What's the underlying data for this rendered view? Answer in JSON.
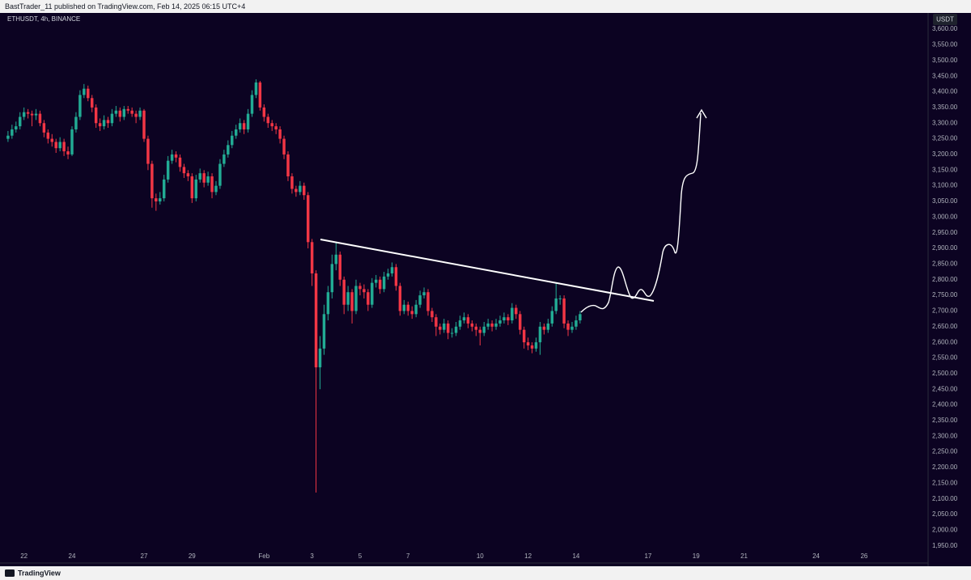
{
  "header": {
    "text": "BastTrader_11 published on TradingView.com, Feb 14, 2025 06:15 UTC+4"
  },
  "footer": {
    "brand": "TradingView"
  },
  "chart_data": {
    "type": "candlestick",
    "title": "ETHUSDT, 4h, BINANCE",
    "y_unit": "USDT",
    "up_color": "#22ab94",
    "down_color": "#f23645",
    "grid": false,
    "xlim": [
      -2,
      230
    ],
    "xticks": [
      {
        "value": 4,
        "label": "22"
      },
      {
        "value": 16,
        "label": "24"
      },
      {
        "value": 34,
        "label": "27"
      },
      {
        "value": 46,
        "label": "29"
      },
      {
        "value": 64,
        "label": "Feb"
      },
      {
        "value": 76,
        "label": "3"
      },
      {
        "value": 88,
        "label": "5"
      },
      {
        "value": 100,
        "label": "7"
      },
      {
        "value": 118,
        "label": "10"
      },
      {
        "value": 130,
        "label": "12"
      },
      {
        "value": 142,
        "label": "14"
      },
      {
        "value": 160,
        "label": "17"
      },
      {
        "value": 172,
        "label": "19"
      },
      {
        "value": 184,
        "label": "21"
      },
      {
        "value": 202,
        "label": "24"
      },
      {
        "value": 214,
        "label": "26"
      }
    ],
    "ylim": [
      1895,
      3652
    ],
    "yticks": [
      {
        "value": 1950,
        "label": "1,950.00"
      },
      {
        "value": 2000,
        "label": "2,000.00"
      },
      {
        "value": 2050,
        "label": "2,050.00"
      },
      {
        "value": 2100,
        "label": "2,100.00"
      },
      {
        "value": 2150,
        "label": "2,150.00"
      },
      {
        "value": 2200,
        "label": "2,200.00"
      },
      {
        "value": 2250,
        "label": "2,250.00"
      },
      {
        "value": 2300,
        "label": "2,300.00"
      },
      {
        "value": 2350,
        "label": "2,350.00"
      },
      {
        "value": 2400,
        "label": "2,400.00"
      },
      {
        "value": 2450,
        "label": "2,450.00"
      },
      {
        "value": 2500,
        "label": "2,500.00"
      },
      {
        "value": 2550,
        "label": "2,550.00"
      },
      {
        "value": 2600,
        "label": "2,600.00"
      },
      {
        "value": 2650,
        "label": "2,650.00"
      },
      {
        "value": 2700,
        "label": "2,700.00"
      },
      {
        "value": 2750,
        "label": "2,750.00"
      },
      {
        "value": 2800,
        "label": "2,800.00"
      },
      {
        "value": 2850,
        "label": "2,850.00"
      },
      {
        "value": 2900,
        "label": "2,900.00"
      },
      {
        "value": 2950,
        "label": "2,950.00"
      },
      {
        "value": 3000,
        "label": "3,000.00"
      },
      {
        "value": 3050,
        "label": "3,050.00"
      },
      {
        "value": 3100,
        "label": "3,100.00"
      },
      {
        "value": 3150,
        "label": "3,150.00"
      },
      {
        "value": 3200,
        "label": "3,200.00"
      },
      {
        "value": 3250,
        "label": "3,250.00"
      },
      {
        "value": 3300,
        "label": "3,300.00"
      },
      {
        "value": 3350,
        "label": "3,350.00"
      },
      {
        "value": 3400,
        "label": "3,400.00"
      },
      {
        "value": 3450,
        "label": "3,450.00"
      },
      {
        "value": 3500,
        "label": "3,500.00"
      },
      {
        "value": 3550,
        "label": "3,550.00"
      },
      {
        "value": 3600,
        "label": "3,600.00"
      }
    ],
    "open": [
      3250,
      3260,
      3280,
      3290,
      3320,
      3335,
      3330,
      3325,
      3330,
      3300,
      3270,
      3250,
      3240,
      3220,
      3240,
      3210,
      3200,
      3280,
      3320,
      3390,
      3410,
      3380,
      3350,
      3300,
      3290,
      3310,
      3300,
      3330,
      3340,
      3320,
      3345,
      3340,
      3330,
      3320,
      3340,
      3250,
      3170,
      3060,
      3050,
      3060,
      3120,
      3180,
      3200,
      3190,
      3160,
      3140,
      3130,
      3060,
      3120,
      3140,
      3110,
      3130,
      3080,
      3100,
      3170,
      3200,
      3230,
      3260,
      3280,
      3300,
      3280,
      3330,
      3390,
      3430,
      3350,
      3320,
      3300,
      3290,
      3280,
      3250,
      3200,
      3130,
      3090,
      3080,
      3100,
      3070,
      2920,
      2820,
      2520,
      2580,
      2690,
      2760,
      2850,
      2880,
      2800,
      2720,
      2760,
      2700,
      2780,
      2770,
      2760,
      2720,
      2790,
      2800,
      2770,
      2810,
      2820,
      2840,
      2780,
      2700,
      2720,
      2700,
      2690,
      2720,
      2750,
      2760,
      2700,
      2680,
      2650,
      2640,
      2660,
      2630,
      2630,
      2650,
      2670,
      2680,
      2660,
      2650,
      2640,
      2630,
      2650,
      2660,
      2650,
      2660,
      2670,
      2680,
      2670,
      2710,
      2690,
      2640,
      2600,
      2590,
      2580,
      2600,
      2650,
      2640,
      2660,
      2700,
      2740,
      2740,
      2660,
      2640,
      2650,
      2670
    ],
    "high": [
      3275,
      3295,
      3305,
      3335,
      3350,
      3345,
      3340,
      3345,
      3340,
      3310,
      3280,
      3265,
      3250,
      3255,
      3250,
      3225,
      3290,
      3335,
      3405,
      3425,
      3420,
      3390,
      3360,
      3315,
      3325,
      3320,
      3345,
      3355,
      3350,
      3355,
      3355,
      3350,
      3340,
      3350,
      3345,
      3260,
      3180,
      3075,
      3080,
      3135,
      3195,
      3215,
      3210,
      3200,
      3170,
      3150,
      3140,
      3135,
      3155,
      3150,
      3145,
      3140,
      3115,
      3185,
      3215,
      3245,
      3275,
      3295,
      3315,
      3310,
      3345,
      3405,
      3440,
      3435,
      3360,
      3330,
      3310,
      3300,
      3290,
      3260,
      3210,
      3140,
      3100,
      3115,
      3110,
      3080,
      2930,
      2830,
      2620,
      2720,
      2780,
      2880,
      2920,
      2890,
      2810,
      2780,
      2770,
      2800,
      2790,
      2785,
      2770,
      2805,
      2815,
      2810,
      2825,
      2835,
      2855,
      2850,
      2790,
      2735,
      2730,
      2715,
      2735,
      2765,
      2775,
      2770,
      2710,
      2690,
      2660,
      2675,
      2670,
      2645,
      2665,
      2685,
      2695,
      2690,
      2670,
      2660,
      2650,
      2665,
      2675,
      2670,
      2675,
      2685,
      2695,
      2690,
      2725,
      2720,
      2700,
      2650,
      2615,
      2600,
      2615,
      2665,
      2660,
      2675,
      2715,
      2790,
      2750,
      2750,
      2670,
      2665,
      2685,
      2700
    ],
    "low": [
      3240,
      3250,
      3270,
      3280,
      3310,
      3315,
      3290,
      3310,
      3290,
      3255,
      3235,
      3225,
      3205,
      3210,
      3195,
      3185,
      3195,
      3270,
      3310,
      3380,
      3370,
      3335,
      3285,
      3275,
      3280,
      3285,
      3290,
      3320,
      3305,
      3310,
      3330,
      3320,
      3300,
      3310,
      3240,
      3150,
      3030,
      3020,
      3040,
      3050,
      3110,
      3170,
      3175,
      3145,
      3125,
      3115,
      3045,
      3050,
      3110,
      3095,
      3100,
      3060,
      3070,
      3090,
      3160,
      3190,
      3220,
      3250,
      3270,
      3265,
      3270,
      3320,
      3380,
      3340,
      3305,
      3285,
      3275,
      3265,
      3235,
      3185,
      3115,
      3075,
      3065,
      3070,
      3055,
      2900,
      2780,
      2120,
      2450,
      2560,
      2670,
      2740,
      2830,
      2780,
      2690,
      2700,
      2660,
      2690,
      2750,
      2740,
      2700,
      2710,
      2775,
      2755,
      2760,
      2800,
      2810,
      2765,
      2685,
      2690,
      2685,
      2675,
      2680,
      2710,
      2740,
      2685,
      2665,
      2620,
      2625,
      2630,
      2610,
      2615,
      2620,
      2640,
      2660,
      2645,
      2635,
      2620,
      2590,
      2620,
      2640,
      2635,
      2640,
      2650,
      2660,
      2655,
      2660,
      2675,
      2625,
      2580,
      2575,
      2565,
      2570,
      2560,
      2625,
      2630,
      2650,
      2690,
      2720,
      2645,
      2620,
      2630,
      2640,
      2660
    ],
    "close": [
      3260,
      3280,
      3290,
      3320,
      3335,
      3330,
      3325,
      3330,
      3300,
      3270,
      3250,
      3240,
      3220,
      3240,
      3210,
      3200,
      3280,
      3320,
      3390,
      3410,
      3380,
      3350,
      3300,
      3290,
      3310,
      3300,
      3330,
      3340,
      3320,
      3345,
      3340,
      3330,
      3320,
      3340,
      3250,
      3170,
      3060,
      3050,
      3060,
      3120,
      3180,
      3200,
      3190,
      3160,
      3140,
      3130,
      3060,
      3120,
      3140,
      3110,
      3130,
      3080,
      3100,
      3170,
      3200,
      3230,
      3260,
      3280,
      3300,
      3280,
      3330,
      3390,
      3430,
      3350,
      3320,
      3300,
      3290,
      3280,
      3250,
      3200,
      3130,
      3090,
      3080,
      3100,
      3070,
      2920,
      2820,
      2520,
      2580,
      2690,
      2760,
      2850,
      2880,
      2800,
      2720,
      2760,
      2700,
      2780,
      2770,
      2760,
      2720,
      2790,
      2800,
      2770,
      2810,
      2820,
      2840,
      2780,
      2700,
      2720,
      2700,
      2690,
      2720,
      2750,
      2760,
      2700,
      2680,
      2650,
      2640,
      2660,
      2630,
      2630,
      2650,
      2670,
      2680,
      2660,
      2650,
      2640,
      2630,
      2650,
      2660,
      2650,
      2660,
      2670,
      2680,
      2670,
      2710,
      2690,
      2640,
      2600,
      2590,
      2580,
      2600,
      2650,
      2640,
      2660,
      2700,
      2740,
      2740,
      2660,
      2640,
      2650,
      2670,
      2690
    ]
  }
}
